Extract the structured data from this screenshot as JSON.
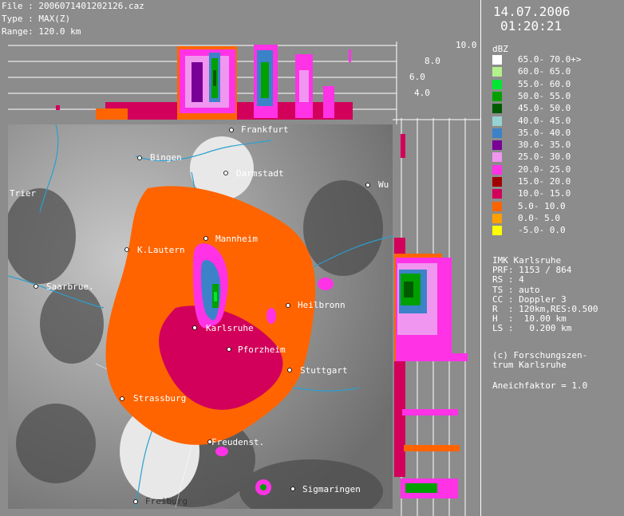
{
  "header": {
    "file_line": "File : 2006071401202126.caz",
    "type_line": "Type : MAX(Z)",
    "range_line": "Range: 120.0 km"
  },
  "datetime": {
    "date": "14.07.2006",
    "time": "01:20:21"
  },
  "height_axis_labels": [
    "10.0",
    "8.0",
    "6.0",
    "4.0"
  ],
  "legend": {
    "unit": "dBZ",
    "items": [
      {
        "label": "65.0- 70.0+>",
        "color": "#ffffff"
      },
      {
        "label": "60.0- 65.0",
        "color": "#b4f08c"
      },
      {
        "label": "55.0- 60.0",
        "color": "#00e632"
      },
      {
        "label": "50.0- 55.0",
        "color": "#00a000"
      },
      {
        "label": "45.0- 50.0",
        "color": "#005a00"
      },
      {
        "label": "40.0- 45.0",
        "color": "#96d2d2"
      },
      {
        "label": "35.0- 40.0",
        "color": "#3c82c8"
      },
      {
        "label": "30.0- 35.0",
        "color": "#780096"
      },
      {
        "label": "25.0- 30.0",
        "color": "#f096f0"
      },
      {
        "label": "20.0- 25.0",
        "color": "#ff32e6"
      },
      {
        "label": "15.0- 20.0",
        "color": "#a00000"
      },
      {
        "label": "10.0- 15.0",
        "color": "#d2005a"
      },
      {
        "label": "5.0- 10.0",
        "color": "#ff6400"
      },
      {
        "label": "0.0- 5.0",
        "color": "#ffa000"
      },
      {
        "label": "-5.0- 0.0",
        "color": "#ffff00"
      }
    ]
  },
  "station_info": [
    "IMK Karlsruhe",
    "PRF: 1153 / 864",
    "RS : 4",
    "TS : auto",
    "CC : Doppler 3",
    "R  : 120km,RES:0.500",
    "H  :  10.00 km",
    "LS :   0.200 km"
  ],
  "credit": [
    "(c) Forschungszen-",
    "trum Karlsruhe"
  ],
  "aneich": "Aneichfaktor = 1.0",
  "cities": [
    {
      "name": "Frankfurt"
    },
    {
      "name": "Bingen"
    },
    {
      "name": "Darmstadt"
    },
    {
      "name": "Trier"
    },
    {
      "name": "Wu"
    },
    {
      "name": "Mannheim"
    },
    {
      "name": "K.Lautern"
    },
    {
      "name": "Saarbrue."
    },
    {
      "name": "Heilbronn"
    },
    {
      "name": "Karlsruhe"
    },
    {
      "name": "Pforzheim"
    },
    {
      "name": "Stuttgart"
    },
    {
      "name": "Strassburg"
    },
    {
      "name": "Freudenst."
    },
    {
      "name": "Sigmaringen"
    },
    {
      "name": "Freiburg"
    }
  ]
}
